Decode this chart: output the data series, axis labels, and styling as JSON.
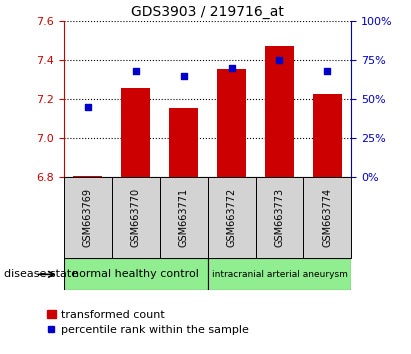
{
  "title": "GDS3903 / 219716_at",
  "samples": [
    "GSM663769",
    "GSM663770",
    "GSM663771",
    "GSM663772",
    "GSM663773",
    "GSM663774"
  ],
  "transformed_count": [
    6.805,
    7.255,
    7.155,
    7.355,
    7.475,
    7.225
  ],
  "percentile_rank": [
    45,
    68,
    65,
    70,
    75,
    68
  ],
  "ylim_left": [
    6.8,
    7.6
  ],
  "ylim_right": [
    0,
    100
  ],
  "yticks_left": [
    6.8,
    7.0,
    7.2,
    7.4,
    7.6
  ],
  "yticks_right": [
    0,
    25,
    50,
    75,
    100
  ],
  "bar_color": "#cc0000",
  "dot_color": "#0000cc",
  "bar_bottom": 6.8,
  "group1_label": "normal healthy control",
  "group2_label": "intracranial arterial aneurysm",
  "group_color": "#90ee90",
  "sample_box_color": "#d3d3d3",
  "disease_state_label": "disease state",
  "legend_bar_label": "transformed count",
  "legend_dot_label": "percentile rank within the sample",
  "title_fontsize": 10,
  "tick_fontsize": 8,
  "sample_fontsize": 7,
  "group_fontsize1": 8,
  "group_fontsize2": 6.5,
  "legend_fontsize": 8
}
